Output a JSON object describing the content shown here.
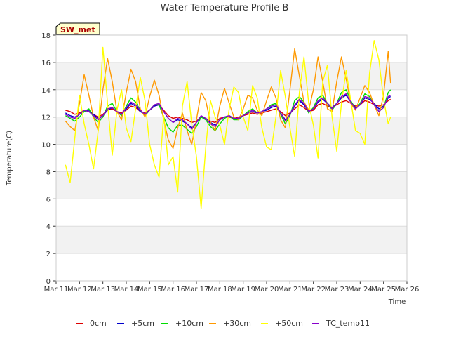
{
  "chart_data": {
    "type": "line",
    "title": "Water Temperature Profile B",
    "xlabel": "Time",
    "ylabel": "Temperature(C)",
    "badge": "SW_met",
    "x_ticks": [
      "Mar 11",
      "Mar 12",
      "Mar 13",
      "Mar 14",
      "Mar 15",
      "Mar 16",
      "Mar 17",
      "Mar 18",
      "Mar 19",
      "Mar 20",
      "Mar 21",
      "Mar 22",
      "Mar 23",
      "Mar 24",
      "Mar 25",
      "Mar 26"
    ],
    "x_range": [
      11,
      26
    ],
    "ylim": [
      0,
      18
    ],
    "y_ticks": [
      0,
      2,
      4,
      6,
      8,
      10,
      12,
      14,
      16,
      18
    ],
    "grid": "horizontal bands",
    "legend_position": "bottom",
    "x_days": [
      11.4,
      11.6,
      11.8,
      12.0,
      12.2,
      12.4,
      12.6,
      12.8,
      13.0,
      13.2,
      13.4,
      13.6,
      13.8,
      14.0,
      14.2,
      14.4,
      14.6,
      14.8,
      15.0,
      15.2,
      15.4,
      15.6,
      15.8,
      16.0,
      16.2,
      16.4,
      16.6,
      16.8,
      17.0,
      17.2,
      17.4,
      17.6,
      17.8,
      18.0,
      18.2,
      18.4,
      18.6,
      18.8,
      19.0,
      19.2,
      19.4,
      19.6,
      19.8,
      20.0,
      20.2,
      20.4,
      20.6,
      20.8,
      21.0,
      21.2,
      21.4,
      21.6,
      21.8,
      22.0,
      22.2,
      22.4,
      22.6,
      22.8,
      23.0,
      23.2,
      23.4,
      23.6,
      23.8,
      24.0,
      24.2,
      24.4,
      24.6,
      24.8,
      25.0,
      25.2,
      25.3
    ],
    "series": [
      {
        "name": "0cm",
        "color": "#dd0000",
        "values": [
          12.5,
          12.4,
          12.2,
          12.3,
          12.5,
          12.4,
          12.2,
          12.0,
          12.2,
          12.5,
          12.6,
          12.4,
          12.3,
          12.5,
          12.8,
          12.7,
          12.4,
          12.3,
          12.5,
          12.8,
          12.9,
          12.5,
          12.1,
          11.9,
          12.0,
          11.9,
          11.8,
          11.6,
          11.7,
          12.0,
          11.9,
          11.7,
          11.6,
          11.9,
          12.0,
          12.0,
          11.9,
          12.0,
          12.1,
          12.2,
          12.3,
          12.2,
          12.3,
          12.4,
          12.5,
          12.6,
          12.4,
          12.1,
          12.3,
          12.6,
          12.9,
          12.7,
          12.4,
          12.5,
          12.9,
          13.0,
          12.8,
          12.7,
          12.9,
          13.1,
          13.2,
          13.0,
          12.8,
          12.9,
          13.2,
          13.1,
          12.9,
          12.8,
          12.9,
          13.2,
          13.3
        ]
      },
      {
        "name": "+5cm",
        "color": "#0000cc",
        "values": [
          12.3,
          12.1,
          12.0,
          12.2,
          12.4,
          12.5,
          12.2,
          11.9,
          12.1,
          12.5,
          12.7,
          12.4,
          12.2,
          12.6,
          13.0,
          12.8,
          12.4,
          12.2,
          12.5,
          12.8,
          12.9,
          12.4,
          11.9,
          11.6,
          11.8,
          11.7,
          11.5,
          11.2,
          11.6,
          12.0,
          11.9,
          11.6,
          11.4,
          11.8,
          12.0,
          12.1,
          11.9,
          11.9,
          12.1,
          12.3,
          12.4,
          12.3,
          12.4,
          12.5,
          12.7,
          12.8,
          12.3,
          11.8,
          12.2,
          12.8,
          13.2,
          12.9,
          12.4,
          12.6,
          13.1,
          13.3,
          13.0,
          12.7,
          13.0,
          13.4,
          13.6,
          13.1,
          12.7,
          12.9,
          13.4,
          13.3,
          13.0,
          12.6,
          12.8,
          13.4,
          13.5
        ]
      },
      {
        "name": "+10cm",
        "color": "#00dd00",
        "values": [
          12.1,
          11.9,
          11.7,
          12.0,
          12.4,
          12.6,
          12.0,
          11.6,
          12.0,
          12.8,
          13.0,
          12.4,
          12.1,
          12.8,
          13.4,
          13.1,
          12.5,
          12.1,
          12.5,
          12.9,
          12.9,
          12.0,
          11.2,
          10.9,
          11.4,
          11.4,
          11.1,
          10.8,
          11.3,
          12.0,
          11.8,
          11.3,
          11.0,
          11.5,
          11.9,
          12.1,
          11.8,
          11.8,
          12.1,
          12.4,
          12.6,
          12.3,
          12.4,
          12.6,
          12.9,
          13.0,
          12.2,
          11.5,
          12.1,
          13.2,
          13.5,
          13.1,
          12.3,
          12.7,
          13.4,
          13.6,
          13.0,
          12.5,
          13.0,
          13.8,
          14.0,
          13.2,
          12.6,
          13.0,
          13.7,
          13.5,
          12.9,
          12.4,
          12.7,
          13.8,
          14.0
        ]
      },
      {
        "name": "+30cm",
        "color": "#ff9900",
        "values": [
          11.7,
          11.3,
          11.0,
          13.0,
          15.1,
          13.6,
          12.0,
          11.0,
          14.0,
          16.3,
          14.6,
          12.4,
          11.8,
          13.8,
          15.5,
          14.6,
          12.6,
          12.0,
          13.5,
          14.7,
          13.6,
          11.8,
          10.3,
          9.7,
          11.2,
          12.3,
          11.0,
          10.0,
          11.8,
          13.8,
          13.2,
          11.6,
          11.0,
          12.8,
          14.1,
          13.0,
          12.0,
          11.8,
          12.6,
          13.6,
          13.4,
          12.5,
          12.1,
          13.2,
          14.2,
          13.4,
          11.8,
          11.2,
          14.0,
          17.0,
          15.0,
          13.1,
          12.5,
          14.0,
          16.4,
          14.6,
          12.6,
          12.4,
          14.6,
          16.4,
          14.8,
          13.0,
          12.5,
          13.4,
          14.3,
          13.8,
          12.9,
          12.1,
          13.6,
          16.8,
          14.5
        ]
      },
      {
        "name": "+50cm",
        "color": "#ffff00",
        "values": [
          8.5,
          7.2,
          10.5,
          13.6,
          11.5,
          10.0,
          8.2,
          11.0,
          17.1,
          13.0,
          9.2,
          12.5,
          14.0,
          11.2,
          10.2,
          12.6,
          14.9,
          13.2,
          10.0,
          8.5,
          7.6,
          12.1,
          8.5,
          9.1,
          6.5,
          12.8,
          14.6,
          11.5,
          9.1,
          5.3,
          9.8,
          13.2,
          12.0,
          11.4,
          10.0,
          12.6,
          14.2,
          13.8,
          12.0,
          11.0,
          14.3,
          13.4,
          11.2,
          9.8,
          9.6,
          12.0,
          15.4,
          13.5,
          11.2,
          9.1,
          13.8,
          16.4,
          13.0,
          11.4,
          9.0,
          14.6,
          15.8,
          12.0,
          9.5,
          13.0,
          15.4,
          13.2,
          11.0,
          10.8,
          10.0,
          15.2,
          17.6,
          16.2,
          13.3,
          11.5,
          12.0
        ]
      },
      {
        "name": "TC_temp11",
        "color": "#8800cc",
        "values": [
          12.2,
          12.0,
          11.9,
          12.2,
          12.5,
          12.4,
          12.1,
          11.8,
          12.1,
          12.6,
          12.7,
          12.4,
          12.2,
          12.7,
          13.1,
          12.9,
          12.5,
          12.2,
          12.5,
          12.9,
          13.0,
          12.4,
          11.9,
          11.6,
          11.9,
          11.8,
          11.5,
          11.1,
          11.6,
          12.1,
          11.9,
          11.5,
          11.3,
          11.8,
          12.0,
          12.1,
          11.9,
          11.9,
          12.1,
          12.3,
          12.5,
          12.3,
          12.4,
          12.6,
          12.8,
          12.9,
          12.3,
          11.7,
          12.2,
          12.9,
          13.3,
          13.0,
          12.4,
          12.6,
          13.2,
          13.4,
          13.0,
          12.6,
          13.0,
          13.5,
          13.7,
          13.1,
          12.6,
          12.9,
          13.5,
          13.4,
          12.9,
          12.4,
          12.7,
          13.5,
          13.6
        ]
      }
    ]
  }
}
